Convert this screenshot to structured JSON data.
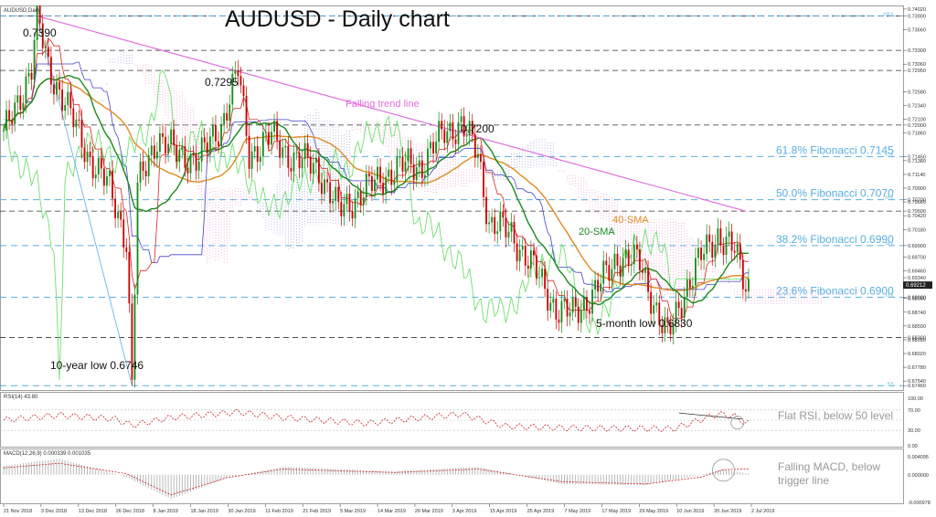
{
  "chart_data": {
    "type": "line",
    "title": "AUDUSD - Daily chart",
    "symbol_label": "AUDUSD,Daily",
    "ylim": [
      0.674,
      0.7405
    ],
    "y_ticks": [
      "0.74020",
      "0.73900",
      "0.73660",
      "0.73300",
      "0.73060",
      "0.72950",
      "0.72580",
      "0.72340",
      "0.72100",
      "0.72000",
      "0.71860",
      "0.71450",
      "0.71380",
      "0.71140",
      "0.70900",
      "0.70700",
      "0.70660",
      "0.70500",
      "0.70420",
      "0.70180",
      "0.69900",
      "0.69700",
      "0.69460",
      "0.69340",
      "0.69212",
      "0.69000",
      "0.68980",
      "0.68740",
      "0.68500",
      "0.68300",
      "0.68260",
      "0.68020",
      "0.67780",
      "0.67540",
      "0.67460"
    ],
    "x_ticks": [
      "21 Nov 2018",
      "3 Dec 2018",
      "13 Dec 2018",
      "26 Dec 2018",
      "8 Jan 2019",
      "18 Jan 2019",
      "30 Jan 2019",
      "11 Feb 2019",
      "21 Feb 2019",
      "5 Mar 2019",
      "14 Mar 2019",
      "26 Mar 2019",
      "3 Apr 2019",
      "15 Apr 2019",
      "25 Apr 2019",
      "7 May 2019",
      "17 May 2019",
      "29 May 2019",
      "10 Jun 2019",
      "20 Jun 2019",
      "2 Jul 2019"
    ],
    "price_path": [
      [
        0,
        0.718
      ],
      [
        5,
        0.724
      ],
      [
        10,
        0.73
      ],
      [
        12,
        0.739
      ],
      [
        16,
        0.73
      ],
      [
        22,
        0.724
      ],
      [
        30,
        0.715
      ],
      [
        38,
        0.709
      ],
      [
        44,
        0.7
      ],
      [
        46,
        0.6746
      ],
      [
        48,
        0.709
      ],
      [
        55,
        0.718
      ],
      [
        62,
        0.715
      ],
      [
        70,
        0.714
      ],
      [
        78,
        0.72
      ],
      [
        84,
        0.7295
      ],
      [
        88,
        0.715
      ],
      [
        96,
        0.718
      ],
      [
        104,
        0.714
      ],
      [
        112,
        0.713
      ],
      [
        120,
        0.705
      ],
      [
        128,
        0.708
      ],
      [
        136,
        0.711
      ],
      [
        144,
        0.713
      ],
      [
        150,
        0.713
      ],
      [
        158,
        0.719
      ],
      [
        164,
        0.72
      ],
      [
        170,
        0.715
      ],
      [
        174,
        0.703
      ],
      [
        182,
        0.701
      ],
      [
        190,
        0.695
      ],
      [
        198,
        0.688
      ],
      [
        204,
        0.687
      ],
      [
        212,
        0.691
      ],
      [
        220,
        0.697
      ],
      [
        228,
        0.696
      ],
      [
        236,
        0.685
      ],
      [
        238,
        0.683
      ],
      [
        244,
        0.691
      ],
      [
        250,
        0.697
      ],
      [
        256,
        0.701
      ],
      [
        262,
        0.698
      ],
      [
        266,
        0.6921
      ]
    ],
    "x_span": 268,
    "series": [
      {
        "name": "20-SMA",
        "color": "#1a8a1a"
      },
      {
        "name": "40-SMA",
        "color": "#e08a1e"
      },
      {
        "name": "Falling trend line",
        "color": "#e070e0"
      }
    ],
    "current_price": "0.69212",
    "fibonacci": [
      {
        "label": "61.8% Fibonacci 0.7145",
        "value": 0.7145,
        "tag": "61.8"
      },
      {
        "label": "50.0% Fibonacci 0.7070",
        "value": 0.707,
        "tag": "50.0"
      },
      {
        "label": "38.2% Fibonacci 0.6990",
        "value": 0.699,
        "tag": "38.2"
      },
      {
        "label": "23.6% Fibonacci 0.6900",
        "value": 0.69,
        "tag": "23.6"
      },
      {
        "label": "",
        "value": 0.739,
        "tag": "100.0"
      },
      {
        "label": "",
        "value": 0.6746,
        "tag": "0.0"
      }
    ],
    "levels": [
      0.739,
      0.733,
      0.7295,
      0.72,
      0.705,
      0.683
    ],
    "annotations": {
      "high": "0.7390",
      "feb_high": "0.7295",
      "apr_high": "0.7200",
      "trend_line": "Falling trend line",
      "sma20": "20-SMA",
      "sma40": "40-SMA",
      "low_5m": "5-month low 0.6830",
      "low_10y": "10-year low 0.6746"
    },
    "rsi": {
      "header": "RSI(14) 43.80",
      "value": 43.8,
      "ticks": [
        "100.00",
        "70.00",
        "30.00",
        "0.00"
      ],
      "note": "Flat RSI, below 50 level",
      "path": [
        [
          0,
          50
        ],
        [
          20,
          60
        ],
        [
          40,
          52
        ],
        [
          46,
          40
        ],
        [
          60,
          55
        ],
        [
          84,
          66
        ],
        [
          100,
          55
        ],
        [
          130,
          44
        ],
        [
          164,
          62
        ],
        [
          180,
          38
        ],
        [
          200,
          35
        ],
        [
          240,
          33
        ],
        [
          256,
          62
        ],
        [
          262,
          58
        ],
        [
          266,
          44
        ]
      ]
    },
    "macd": {
      "header": "MACD(12,26,9) 0.000339 0.001035",
      "ticks": [
        "0.004095",
        "0.000000",
        "-0.000978"
      ],
      "note": "Falling MACD, below trigger line",
      "signal_path": [
        [
          0,
          0.0012
        ],
        [
          20,
          0.002
        ],
        [
          44,
          0.0002
        ],
        [
          60,
          -0.0035
        ],
        [
          80,
          -0.0005
        ],
        [
          100,
          0.001
        ],
        [
          140,
          0.0004
        ],
        [
          170,
          0.001
        ],
        [
          200,
          -0.0012
        ],
        [
          230,
          -0.0016
        ],
        [
          250,
          -0.0004
        ],
        [
          258,
          0.0009
        ],
        [
          266,
          0.001
        ]
      ],
      "hist": [
        [
          0,
          0.0016
        ],
        [
          20,
          0.0028
        ],
        [
          44,
          -0.0004
        ],
        [
          60,
          -0.0042
        ],
        [
          80,
          -0.0006
        ],
        [
          100,
          0.0014
        ],
        [
          140,
          0.0006
        ],
        [
          170,
          0.0014
        ],
        [
          200,
          -0.0016
        ],
        [
          230,
          -0.0018
        ],
        [
          250,
          0.0
        ],
        [
          258,
          0.001
        ],
        [
          266,
          0.0003
        ]
      ]
    }
  }
}
